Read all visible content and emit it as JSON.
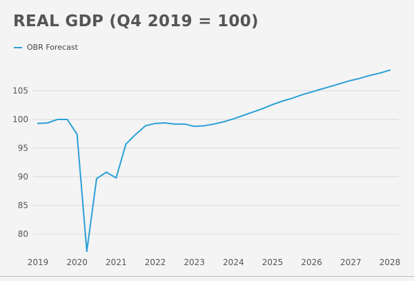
{
  "chart_data": {
    "type": "line",
    "title": "REAL GDP (Q4 2019 = 100)",
    "xlabel": "",
    "ylabel": "",
    "x_ticks": [
      "2019",
      "2020",
      "2021",
      "2022",
      "2023",
      "2024",
      "2025",
      "2026",
      "2027",
      "2028"
    ],
    "y_ticks": [
      80,
      85,
      90,
      95,
      100,
      105
    ],
    "xlim": [
      2019,
      2028
    ],
    "ylim": [
      77,
      110
    ],
    "grid": "horizontal",
    "legend": "top-left",
    "series": [
      {
        "name": "OBR Forecast",
        "color": "#2a9fd6",
        "x": [
          2019.0,
          2019.25,
          2019.5,
          2019.75,
          2020.0,
          2020.25,
          2020.5,
          2020.75,
          2021.0,
          2021.25,
          2021.5,
          2021.75,
          2022.0,
          2022.25,
          2022.5,
          2022.75,
          2023.0,
          2023.25,
          2023.5,
          2023.75,
          2024.0,
          2024.25,
          2024.5,
          2024.75,
          2025.0,
          2025.25,
          2025.5,
          2025.75,
          2026.0,
          2026.25,
          2026.5,
          2026.75,
          2027.0,
          2027.25,
          2027.5,
          2027.75,
          2028.0
        ],
        "y": [
          99.3,
          99.4,
          100.0,
          100.0,
          97.4,
          77.0,
          89.7,
          90.8,
          89.8,
          95.7,
          97.4,
          98.9,
          99.3,
          99.4,
          99.2,
          99.2,
          98.8,
          98.9,
          99.2,
          99.6,
          100.1,
          100.7,
          101.3,
          101.9,
          102.6,
          103.2,
          103.7,
          104.3,
          104.8,
          105.3,
          105.8,
          106.3,
          106.8,
          107.2,
          107.7,
          108.1,
          108.6
        ]
      }
    ]
  }
}
